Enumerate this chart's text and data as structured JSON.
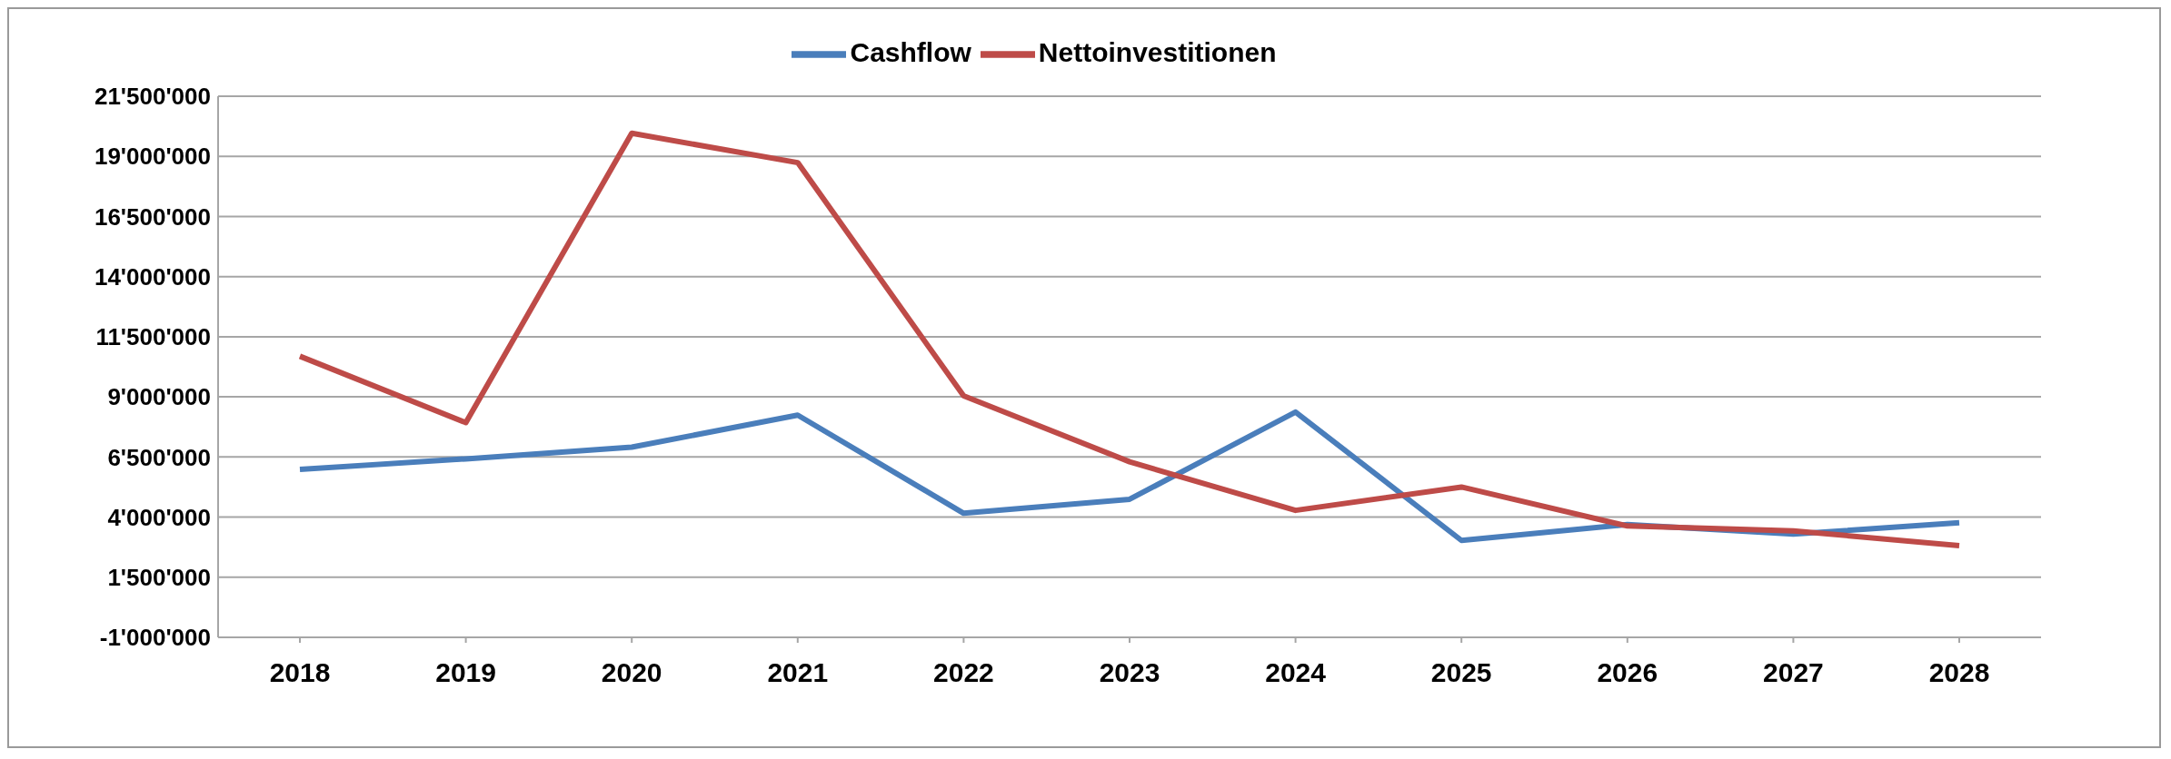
{
  "chart_data": {
    "type": "line",
    "categories": [
      "2018",
      "2019",
      "2020",
      "2021",
      "2022",
      "2023",
      "2024",
      "2025",
      "2026",
      "2027",
      "2028"
    ],
    "series": [
      {
        "name": "Cashflow",
        "color": "#4a7ebb",
        "values": [
          5980000,
          6420000,
          6910000,
          8240000,
          4160000,
          4740000,
          8370000,
          3030000,
          3690000,
          3290000,
          3770000
        ]
      },
      {
        "name": "Nettoinvestitionen",
        "color": "#be4b48",
        "values": [
          10690000,
          7930000,
          19960000,
          18740000,
          9040000,
          6300000,
          4280000,
          5250000,
          3630000,
          3430000,
          2810000
        ]
      }
    ],
    "ylim": [
      -1000000,
      21500000
    ],
    "yticks": [
      {
        "value": -1000000,
        "label": "-1'000'000"
      },
      {
        "value": 1500000,
        "label": "1'500'000"
      },
      {
        "value": 4000000,
        "label": "4'000'000"
      },
      {
        "value": 6500000,
        "label": "6'500'000"
      },
      {
        "value": 9000000,
        "label": "9'000'000"
      },
      {
        "value": 11500000,
        "label": "11'500'000"
      },
      {
        "value": 14000000,
        "label": "14'000'000"
      },
      {
        "value": 16500000,
        "label": "16'500'000"
      },
      {
        "value": 19000000,
        "label": "19'000'000"
      },
      {
        "value": 21500000,
        "label": "21'500'000"
      }
    ],
    "grid": "y",
    "legend": "top",
    "marker": "none",
    "line_style": "solid"
  }
}
